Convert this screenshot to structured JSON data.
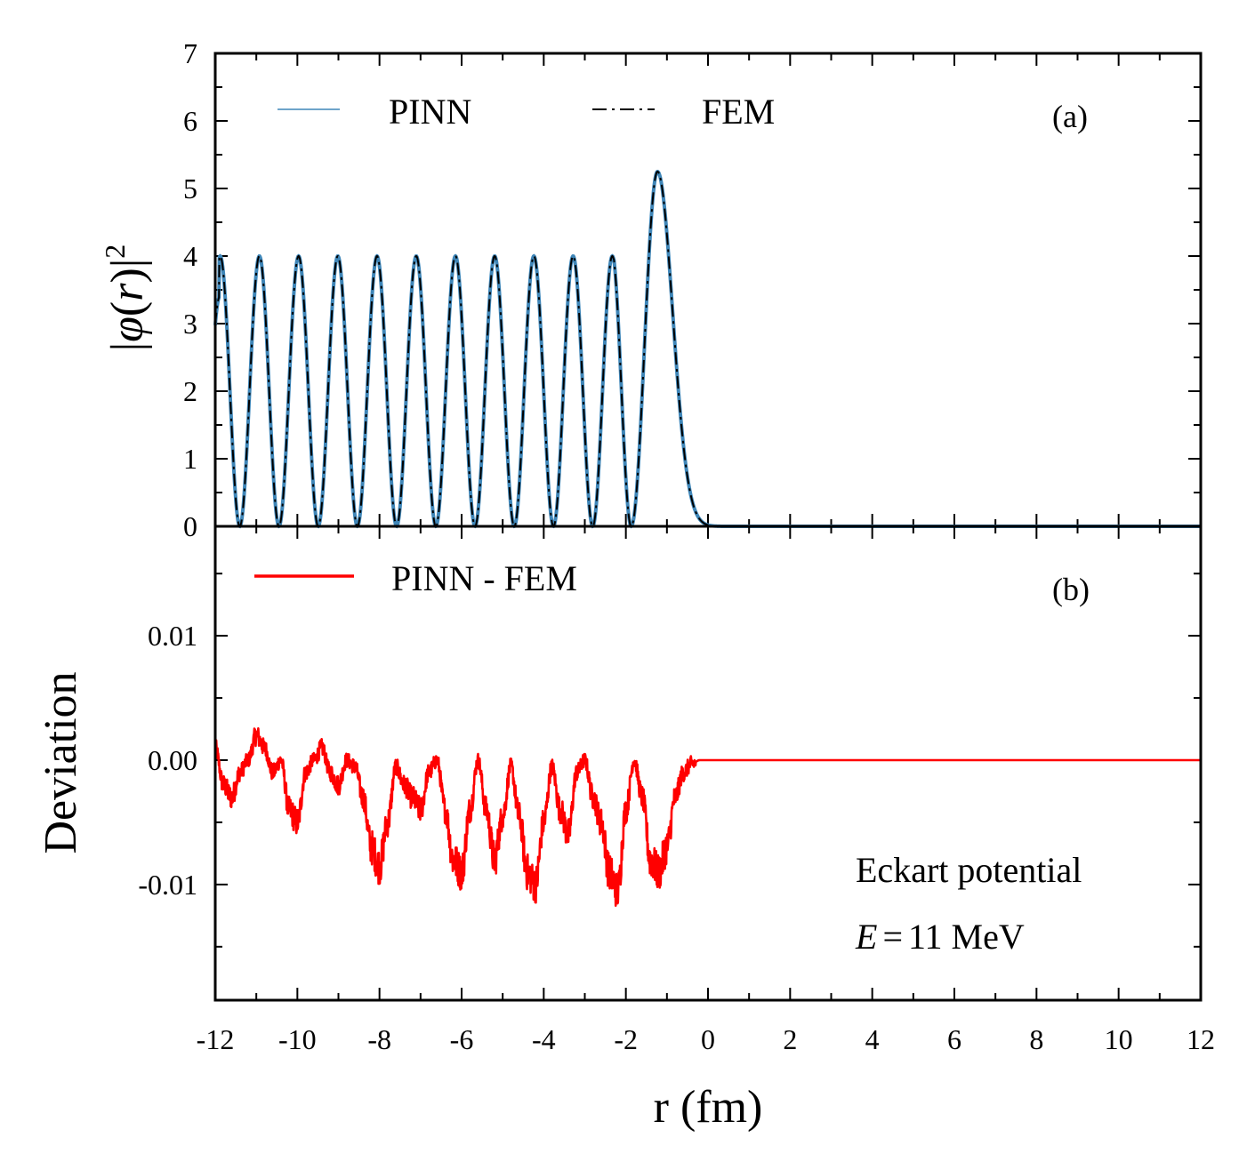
{
  "chart_data": [
    {
      "panel": "(a)",
      "type": "line",
      "ylabel_parts": {
        "bar_left": "|",
        "phi": "φ",
        "open": "(",
        "r": "r",
        "close": ")",
        "bar_right": "|",
        "exp": "2"
      },
      "xlim": [
        -12,
        12
      ],
      "ylim": [
        0,
        7
      ],
      "y_ticks": [
        "0",
        "1",
        "2",
        "3",
        "4",
        "5",
        "6",
        "7"
      ],
      "grid": false,
      "legend_position": "top",
      "series": [
        {
          "name": "PINN",
          "color": "#3f86b8",
          "style": "solid",
          "x": [
            -12,
            -11.88,
            -11.52,
            -10.9,
            -10.42,
            -9.95,
            -9.47,
            -8.99,
            -8.51,
            -8.05,
            -7.57,
            -7.1,
            -6.62,
            -6.15,
            -5.67,
            -5.21,
            -4.73,
            -4.25,
            -3.77,
            -3.3,
            -2.82,
            -2.35,
            -1.87,
            -1.23,
            -0.6,
            0,
            0.5,
            12
          ],
          "y": [
            3.4,
            4.0,
            0,
            4.0,
            0,
            4.0,
            0,
            4.0,
            0,
            4.0,
            0,
            4.0,
            0,
            4.0,
            0,
            4.0,
            0,
            4.0,
            0,
            4.0,
            0,
            4.0,
            0,
            5.25,
            1.7,
            0.02,
            0,
            0
          ]
        },
        {
          "name": "FEM",
          "color": "#000000",
          "style": "dashdot",
          "x": [
            -12,
            -11.88,
            -11.52,
            -10.9,
            -10.42,
            -9.95,
            -9.47,
            -8.99,
            -8.51,
            -8.05,
            -7.57,
            -7.1,
            -6.62,
            -6.15,
            -5.67,
            -5.21,
            -4.73,
            -4.25,
            -3.77,
            -3.3,
            -2.82,
            -2.35,
            -1.87,
            -1.23,
            -0.6,
            0,
            0.5,
            12
          ],
          "y": [
            3.4,
            4.0,
            0,
            4.0,
            0,
            4.0,
            0,
            4.0,
            0,
            4.0,
            0,
            4.0,
            0,
            4.0,
            0,
            4.0,
            0,
            4.0,
            0,
            4.0,
            0,
            4.0,
            0,
            5.25,
            1.7,
            0.02,
            0,
            0
          ]
        }
      ]
    },
    {
      "panel": "(b)",
      "type": "line",
      "xlabel": "r (fm)",
      "ylabel": "Deviation",
      "xlim": [
        -12,
        12
      ],
      "ylim": [
        -0.0193,
        0.0188
      ],
      "x_ticks": [
        "-12",
        "-10",
        "-8",
        "-6",
        "-4",
        "-2",
        "0",
        "2",
        "4",
        "6",
        "8",
        "10",
        "12"
      ],
      "y_ticks": [
        {
          "value": 0.01,
          "label": "0.01"
        },
        {
          "value": 0.0,
          "label": "0.00"
        },
        {
          "value": -0.01,
          "label": "-0.01"
        }
      ],
      "grid": false,
      "legend_position": "top-left",
      "annotations": {
        "potential": "Eckart potential",
        "energy_symbol": "E",
        "energy_equals": "=",
        "energy_value": "11 MeV"
      },
      "series": [
        {
          "name": "PINN - FEM",
          "color": "#ff0000",
          "x": [
            -12,
            -11.8,
            -11.6,
            -11.4,
            -11.2,
            -11.0,
            -10.8,
            -10.6,
            -10.4,
            -10.2,
            -10.0,
            -9.8,
            -9.6,
            -9.4,
            -9.2,
            -9.0,
            -8.8,
            -8.6,
            -8.4,
            -8.2,
            -8.0,
            -7.8,
            -7.6,
            -7.4,
            -7.2,
            -7.0,
            -6.8,
            -6.6,
            -6.4,
            -6.2,
            -6.0,
            -5.8,
            -5.6,
            -5.4,
            -5.2,
            -5.0,
            -4.8,
            -4.6,
            -4.4,
            -4.2,
            -4.0,
            -3.8,
            -3.6,
            -3.4,
            -3.2,
            -3.0,
            -2.8,
            -2.6,
            -2.4,
            -2.2,
            -2.0,
            -1.8,
            -1.6,
            -1.4,
            -1.2,
            -1.0,
            -0.8,
            -0.6,
            -0.4,
            -0.2,
            0.0,
            0.5,
            12
          ],
          "y": [
            0.001,
            -0.002,
            -0.003,
            -0.001,
            0.0,
            0.002,
            0.001,
            -0.001,
            0.0,
            -0.004,
            -0.005,
            -0.001,
            0.0,
            0.001,
            -0.001,
            -0.002,
            0.0,
            -0.0005,
            -0.003,
            -0.007,
            -0.0085,
            -0.005,
            -0.0005,
            -0.002,
            -0.003,
            -0.004,
            -0.001,
            0.0,
            -0.004,
            -0.008,
            -0.009,
            -0.004,
            0.0,
            -0.004,
            -0.008,
            -0.0045,
            -0.0005,
            -0.0045,
            -0.009,
            -0.01,
            -0.005,
            -0.0005,
            -0.004,
            -0.006,
            -0.001,
            0.0,
            -0.003,
            -0.005,
            -0.009,
            -0.0105,
            -0.004,
            0.0,
            -0.003,
            -0.008,
            -0.009,
            -0.007,
            -0.003,
            -0.001,
            -0.0003,
            0.0,
            0.0,
            0.0,
            0.0
          ]
        }
      ]
    }
  ]
}
